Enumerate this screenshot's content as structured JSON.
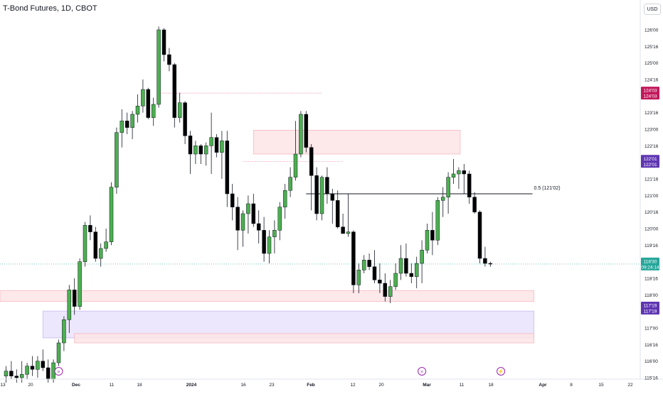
{
  "header": {
    "title": "T-Bond Futures, 1D, CBOT",
    "currency": "USD"
  },
  "colors": {
    "bull": "#4caf50",
    "bear": "#000000",
    "zone_red": "#fde4e6",
    "zone_purple": "#e9e3fb",
    "last_price_label": "#26a69a",
    "level_red_label": "#c2185b",
    "level_purple_label": "#5e35b1"
  },
  "fib_label": "0.5 (121'02)",
  "price_axis": {
    "ticks": [
      "126'00",
      "125'16",
      "125'00",
      "124'16",
      "124'00",
      "123'16",
      "123'00",
      "122'16",
      "122'00",
      "121'16",
      "121'00",
      "120'16",
      "120'00",
      "119'16",
      "119'00",
      "118'16",
      "118'00",
      "117'16",
      "117'00",
      "116'16",
      "116'00",
      "115'16"
    ],
    "labels": [
      {
        "text": "124'03",
        "text2": "124'03",
        "kind": "red"
      },
      {
        "text": "122'01",
        "text2": "122'01",
        "kind": "purple"
      },
      {
        "text": "118'30",
        "text2": "09:24:14",
        "kind": "last"
      },
      {
        "text": "117'19",
        "text2": "117'19",
        "kind": "purple"
      }
    ]
  },
  "time_axis": {
    "ticks": [
      "13",
      "20",
      "Dec",
      "11",
      "18",
      "2024",
      "16",
      "23",
      "Feb",
      "12",
      "20",
      "Mar",
      "11",
      "18",
      "Apr",
      "8",
      "15",
      "22"
    ]
  },
  "chart_data": {
    "type": "candlestick",
    "title": "T-Bond Futures, 1D, CBOT",
    "ylim": [
      115.35,
      126.3
    ],
    "price_unit": "points (ticks in 32nds)",
    "candles": [
      {
        "o": 115.55,
        "h": 115.85,
        "l": 115.35,
        "c": 115.7
      },
      {
        "o": 115.7,
        "h": 116.0,
        "l": 115.45,
        "c": 115.55
      },
      {
        "o": 115.55,
        "h": 115.75,
        "l": 115.35,
        "c": 115.5
      },
      {
        "o": 115.5,
        "h": 116.0,
        "l": 115.35,
        "c": 115.6
      },
      {
        "o": 115.6,
        "h": 115.95,
        "l": 115.45,
        "c": 115.85
      },
      {
        "o": 115.85,
        "h": 116.15,
        "l": 115.55,
        "c": 115.75
      },
      {
        "o": 115.75,
        "h": 116.15,
        "l": 115.5,
        "c": 116.0
      },
      {
        "o": 116.0,
        "h": 116.35,
        "l": 115.7,
        "c": 115.8
      },
      {
        "o": 115.8,
        "h": 116.05,
        "l": 115.35,
        "c": 115.45
      },
      {
        "o": 115.45,
        "h": 116.05,
        "l": 115.35,
        "c": 115.95
      },
      {
        "o": 115.95,
        "h": 116.65,
        "l": 115.85,
        "c": 116.55
      },
      {
        "o": 116.55,
        "h": 117.35,
        "l": 116.3,
        "c": 117.25
      },
      {
        "o": 117.25,
        "h": 118.3,
        "l": 116.85,
        "c": 118.15
      },
      {
        "o": 118.15,
        "h": 118.5,
        "l": 117.4,
        "c": 117.65
      },
      {
        "o": 117.65,
        "h": 119.1,
        "l": 117.55,
        "c": 119.0
      },
      {
        "o": 119.0,
        "h": 120.2,
        "l": 118.85,
        "c": 120.1
      },
      {
        "o": 120.1,
        "h": 120.4,
        "l": 119.65,
        "c": 119.9
      },
      {
        "o": 119.9,
        "h": 120.05,
        "l": 119.0,
        "c": 119.1
      },
      {
        "o": 119.1,
        "h": 119.55,
        "l": 118.85,
        "c": 119.4
      },
      {
        "o": 119.4,
        "h": 120.0,
        "l": 119.3,
        "c": 119.6
      },
      {
        "o": 119.6,
        "h": 121.4,
        "l": 119.5,
        "c": 121.25
      },
      {
        "o": 121.25,
        "h": 123.05,
        "l": 121.05,
        "c": 122.9
      },
      {
        "o": 122.9,
        "h": 123.6,
        "l": 122.45,
        "c": 123.25
      },
      {
        "o": 123.25,
        "h": 123.5,
        "l": 122.85,
        "c": 123.05
      },
      {
        "o": 123.05,
        "h": 123.55,
        "l": 122.7,
        "c": 123.45
      },
      {
        "o": 123.45,
        "h": 124.05,
        "l": 123.2,
        "c": 123.7
      },
      {
        "o": 123.7,
        "h": 124.5,
        "l": 123.5,
        "c": 124.2
      },
      {
        "o": 124.2,
        "h": 124.25,
        "l": 123.3,
        "c": 123.35
      },
      {
        "o": 123.35,
        "h": 123.95,
        "l": 123.1,
        "c": 123.75
      },
      {
        "o": 123.75,
        "h": 126.1,
        "l": 123.65,
        "c": 126.0
      },
      {
        "o": 126.0,
        "h": 126.05,
        "l": 125.05,
        "c": 125.25
      },
      {
        "o": 125.25,
        "h": 125.45,
        "l": 124.75,
        "c": 124.95
      },
      {
        "o": 124.95,
        "h": 125.0,
        "l": 123.05,
        "c": 123.35
      },
      {
        "o": 123.35,
        "h": 124.1,
        "l": 123.2,
        "c": 123.8
      },
      {
        "o": 123.8,
        "h": 123.85,
        "l": 122.55,
        "c": 122.8
      },
      {
        "o": 122.8,
        "h": 122.95,
        "l": 121.65,
        "c": 122.25
      },
      {
        "o": 122.25,
        "h": 122.65,
        "l": 121.95,
        "c": 122.5
      },
      {
        "o": 122.5,
        "h": 122.55,
        "l": 121.95,
        "c": 122.25
      },
      {
        "o": 122.25,
        "h": 122.6,
        "l": 121.9,
        "c": 122.5
      },
      {
        "o": 122.5,
        "h": 123.5,
        "l": 121.65,
        "c": 122.75
      },
      {
        "o": 122.75,
        "h": 122.85,
        "l": 122.15,
        "c": 122.3
      },
      {
        "o": 122.3,
        "h": 122.95,
        "l": 121.5,
        "c": 122.65
      },
      {
        "o": 122.65,
        "h": 122.95,
        "l": 120.65,
        "c": 121.05
      },
      {
        "o": 121.05,
        "h": 121.35,
        "l": 120.25,
        "c": 120.65
      },
      {
        "o": 120.65,
        "h": 120.95,
        "l": 119.35,
        "c": 119.95
      },
      {
        "o": 119.95,
        "h": 120.55,
        "l": 119.45,
        "c": 120.45
      },
      {
        "o": 120.45,
        "h": 121.0,
        "l": 119.85,
        "c": 120.75
      },
      {
        "o": 120.75,
        "h": 121.05,
        "l": 120.05,
        "c": 120.15
      },
      {
        "o": 120.15,
        "h": 120.55,
        "l": 119.55,
        "c": 119.95
      },
      {
        "o": 119.95,
        "h": 120.35,
        "l": 119.0,
        "c": 119.25
      },
      {
        "o": 119.25,
        "h": 119.95,
        "l": 118.95,
        "c": 119.75
      },
      {
        "o": 119.75,
        "h": 120.25,
        "l": 119.25,
        "c": 119.95
      },
      {
        "o": 119.95,
        "h": 120.8,
        "l": 119.65,
        "c": 120.65
      },
      {
        "o": 120.65,
        "h": 121.35,
        "l": 120.3,
        "c": 121.15
      },
      {
        "o": 121.15,
        "h": 121.85,
        "l": 120.95,
        "c": 121.55
      },
      {
        "o": 121.55,
        "h": 123.25,
        "l": 121.45,
        "c": 122.25
      },
      {
        "o": 122.25,
        "h": 123.55,
        "l": 122.15,
        "c": 123.45
      },
      {
        "o": 123.45,
        "h": 123.55,
        "l": 122.3,
        "c": 122.45
      },
      {
        "o": 122.45,
        "h": 122.55,
        "l": 120.55,
        "c": 121.6
      },
      {
        "o": 121.6,
        "h": 121.85,
        "l": 120.25,
        "c": 120.45
      },
      {
        "o": 120.45,
        "h": 121.6,
        "l": 120.25,
        "c": 121.55
      },
      {
        "o": 121.55,
        "h": 121.85,
        "l": 120.75,
        "c": 121.05
      },
      {
        "o": 121.05,
        "h": 121.2,
        "l": 120.15,
        "c": 120.85
      },
      {
        "o": 120.85,
        "h": 121.15,
        "l": 120.0,
        "c": 120.05
      },
      {
        "o": 120.05,
        "h": 120.45,
        "l": 119.85,
        "c": 119.85
      },
      {
        "o": 119.85,
        "h": 121.05,
        "l": 119.75,
        "c": 119.9
      },
      {
        "o": 119.9,
        "h": 119.95,
        "l": 118.05,
        "c": 118.3
      },
      {
        "o": 118.3,
        "h": 118.95,
        "l": 118.05,
        "c": 118.75
      },
      {
        "o": 118.75,
        "h": 119.2,
        "l": 118.65,
        "c": 119.05
      },
      {
        "o": 119.05,
        "h": 119.25,
        "l": 118.75,
        "c": 118.85
      },
      {
        "o": 118.85,
        "h": 119.35,
        "l": 118.35,
        "c": 118.45
      },
      {
        "o": 118.45,
        "h": 118.95,
        "l": 118.05,
        "c": 118.35
      },
      {
        "o": 118.35,
        "h": 118.65,
        "l": 117.8,
        "c": 117.95
      },
      {
        "o": 117.95,
        "h": 118.45,
        "l": 117.75,
        "c": 118.25
      },
      {
        "o": 118.25,
        "h": 118.95,
        "l": 118.15,
        "c": 118.65
      },
      {
        "o": 118.65,
        "h": 119.5,
        "l": 118.45,
        "c": 119.1
      },
      {
        "o": 119.1,
        "h": 119.55,
        "l": 118.55,
        "c": 118.65
      },
      {
        "o": 118.65,
        "h": 118.95,
        "l": 118.35,
        "c": 118.55
      },
      {
        "o": 118.55,
        "h": 119.15,
        "l": 118.2,
        "c": 118.95
      },
      {
        "o": 118.95,
        "h": 119.65,
        "l": 118.35,
        "c": 119.35
      },
      {
        "o": 119.35,
        "h": 120.15,
        "l": 119.25,
        "c": 119.95
      },
      {
        "o": 119.95,
        "h": 120.5,
        "l": 119.2,
        "c": 119.65
      },
      {
        "o": 119.65,
        "h": 120.95,
        "l": 119.5,
        "c": 120.85
      },
      {
        "o": 120.85,
        "h": 121.25,
        "l": 120.35,
        "c": 120.95
      },
      {
        "o": 120.95,
        "h": 121.7,
        "l": 120.45,
        "c": 121.55
      },
      {
        "o": 121.55,
        "h": 122.1,
        "l": 121.35,
        "c": 121.65
      },
      {
        "o": 121.65,
        "h": 121.85,
        "l": 121.2,
        "c": 121.75
      },
      {
        "o": 121.75,
        "h": 121.95,
        "l": 121.05,
        "c": 121.65
      },
      {
        "o": 121.65,
        "h": 121.75,
        "l": 120.75,
        "c": 120.95
      },
      {
        "o": 120.95,
        "h": 121.1,
        "l": 120.45,
        "c": 120.5
      },
      {
        "o": 120.5,
        "h": 120.55,
        "l": 118.95,
        "c": 119.1
      },
      {
        "o": 119.1,
        "h": 119.45,
        "l": 118.85,
        "c": 118.95
      },
      {
        "o": 118.95,
        "h": 119.0,
        "l": 118.85,
        "c": 118.93
      }
    ],
    "zones": [
      {
        "top": 122.97,
        "bottom": 122.25,
        "from": 47,
        "to": 86,
        "kind": "red"
      },
      {
        "top": 118.13,
        "bottom": 117.8,
        "from": -3,
        "to": 100,
        "kind": "red"
      },
      {
        "top": 117.51,
        "bottom": 116.7,
        "from": 7,
        "to": 100,
        "kind": "purple"
      },
      {
        "top": 116.83,
        "bottom": 116.55,
        "from": 13,
        "to": 100,
        "kind": "red"
      }
    ],
    "levels": [
      {
        "price": 124.09,
        "from": 29,
        "to": 60,
        "kind": "red-dotted"
      },
      {
        "price": 121.05,
        "from": 57,
        "to": 100,
        "kind": "fib"
      },
      {
        "price": 118.93,
        "from": -3,
        "to": 128,
        "kind": "last"
      }
    ],
    "events": [
      {
        "bar": 10,
        "kind": "dividend"
      },
      {
        "bar": 79,
        "kind": "dividend"
      },
      {
        "bar": 94,
        "kind": "flash"
      }
    ]
  }
}
